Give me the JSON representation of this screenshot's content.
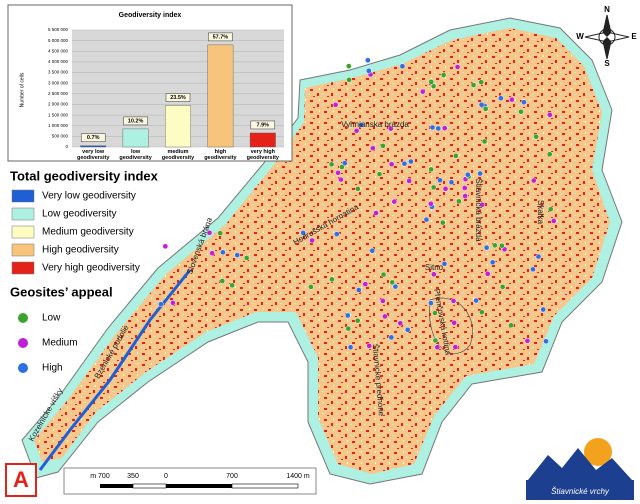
{
  "chart_data": {
    "type": "bar",
    "title": "Geodiversity index",
    "y_label": "Number of cells",
    "categories": [
      "very low geodiversity",
      "low geodiversity",
      "medium geodiversity",
      "high geodiversity",
      "very high geodiversity"
    ],
    "values": [
      58000,
      850000,
      1950000,
      4800000,
      660000
    ],
    "share_labels": [
      "0.7%",
      "10.2%",
      "23.5%",
      "57.7%",
      "7.9%"
    ],
    "colors": [
      "#1f5fd6",
      "#aef0e2",
      "#fdfcc2",
      "#f8c47c",
      "#e5221a"
    ],
    "ylim": [
      0,
      5500000
    ],
    "yticks": [
      0,
      {
        "value": 500000,
        "label": "500 000"
      },
      {
        "value": 1000000,
        "label": "1 000 000"
      },
      {
        "value": 1500000,
        "label": "1 500 000"
      },
      {
        "value": 2000000,
        "label": "2 000 000"
      },
      {
        "value": 2500000,
        "label": "2 500 000"
      },
      {
        "value": 3000000,
        "label": "3 000 000"
      },
      {
        "value": 3500000,
        "label": "3 500 000"
      },
      {
        "value": 4000000,
        "label": "4 000 000"
      },
      {
        "value": 4500000,
        "label": "4 500 000"
      },
      {
        "value": 5000000,
        "label": "5 000 000"
      },
      {
        "value": 5500000,
        "label": "5 500 000"
      }
    ],
    "grid": true
  },
  "map": {
    "panel_label": "A",
    "legend_title": "Total geodiversity index",
    "legend_items": [
      {
        "label": "Very low geodiversity",
        "color": "#1f5fd6"
      },
      {
        "label": "Low geodiversity",
        "color": "#aef0e2"
      },
      {
        "label": "Medium geodiversity",
        "color": "#fdfcc2"
      },
      {
        "label": "High geodiversity",
        "color": "#f8c47c"
      },
      {
        "label": "Very high geodiversity",
        "color": "#e5221a"
      }
    ],
    "appeal_title": "Geosites’ appeal",
    "appeal_items": [
      {
        "label": "Low",
        "color": "#3aa52c"
      },
      {
        "label": "Medium",
        "color": "#c21fd8"
      },
      {
        "label": "High",
        "color": "#2c6fe6"
      }
    ],
    "places": [
      "Vyhnianska brázda",
      "Hodrušská hornatina",
      "Štiavnická brázda",
      "Skalka",
      "Sitno",
      "Prenčovská kotlina",
      "Štiavnické predhorie",
      "Slovenská brána",
      "Bzenické podolie",
      "Kozelnícke vŕšky"
    ],
    "scale": [
      "m 700",
      "350",
      "0",
      "700",
      "1400 m"
    ],
    "compass": [
      "N",
      "E",
      "S",
      "W"
    ],
    "logo": "Štiavnické vrchy"
  }
}
